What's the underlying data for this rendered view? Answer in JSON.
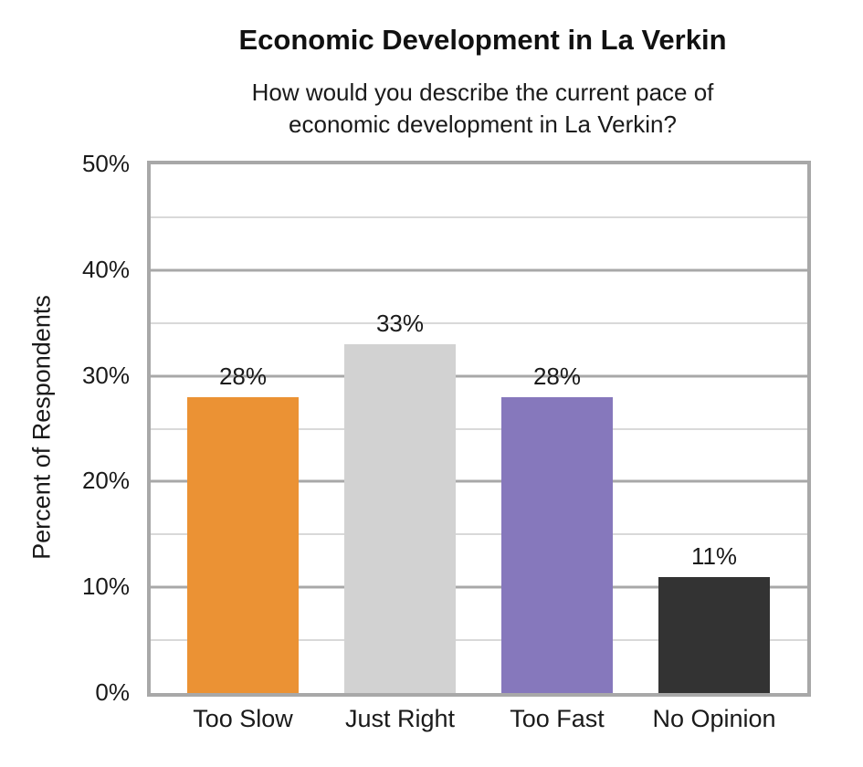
{
  "chart": {
    "title": "Economic Development in La Verkin",
    "subtitle_line1": "How would you describe the current pace of",
    "subtitle_line2": "economic development in La Verkin?",
    "y_axis_title": "Percent of Respondents"
  },
  "chart_data": {
    "type": "bar",
    "title": "Economic Development in La Verkin",
    "subtitle": "How would you describe the current pace of economic development in La Verkin?",
    "categories": [
      "Too Slow",
      "Just Right",
      "Too Fast",
      "No Opinion"
    ],
    "values": [
      28,
      33,
      28,
      11
    ],
    "data_labels": [
      "28%",
      "33%",
      "28%",
      "11%"
    ],
    "bar_colors": [
      "#EB9234",
      "#D2D2D2",
      "#8678BC",
      "#333333"
    ],
    "xlabel": "",
    "ylabel": "Percent of Respondents",
    "ylim": [
      0,
      50
    ],
    "y_tick_interval": 10,
    "y_minor_tick_interval": 5,
    "y_tick_labels": [
      "0%",
      "10%",
      "20%",
      "30%",
      "40%",
      "50%"
    ],
    "grid": "horizontal, major and minor",
    "legend": "none",
    "style_colors": {
      "plot_border": "#A8A8A8",
      "major_gridline": "#A8A8A8",
      "minor_gridline": "#D9D9D9",
      "text": "#1A1A1A"
    }
  }
}
